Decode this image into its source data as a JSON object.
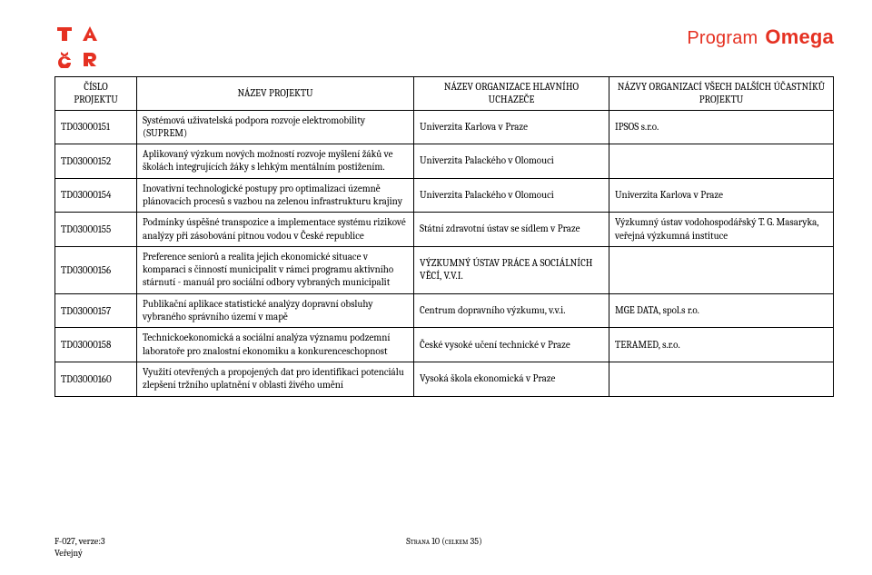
{
  "brand": {
    "accent_color": "#e53122",
    "program_label": "Program",
    "program_name": "Omega"
  },
  "table": {
    "headers": {
      "col1_line1": "ČÍSLO",
      "col1_line2": "PROJEKTU",
      "col2": "NÁZEV PROJEKTU",
      "col3_line1": "NÁZEV ORGANIZACE HLAVNÍHO",
      "col3_line2": "UCHAZEČE",
      "col4_line1": "NÁZVY ORGANIZACÍ VŠECH DALŠÍCH ÚČASTNÍKŮ",
      "col4_line2": "PROJEKTU"
    },
    "rows": [
      {
        "id": "TD03000151",
        "name": "Systémová uživatelská podpora rozvoje elektromobility (SUPREM)",
        "org": "Univerzita Karlova v Praze",
        "participants": "IPSOS s.r.o."
      },
      {
        "id": "TD03000152",
        "name": "Aplikovaný výzkum nových možností rozvoje myšlení žáků ve školách integrujících žáky s lehkým mentálním postižením.",
        "org": "Univerzita Palackého v Olomouci",
        "participants": ""
      },
      {
        "id": "TD03000154",
        "name": "Inovativní technologické postupy pro optimalizaci územně plánovacích procesů s vazbou na zelenou infrastrukturu krajiny",
        "org": "Univerzita Palackého v Olomouci",
        "participants": "Univerzita Karlova v Praze"
      },
      {
        "id": "TD03000155",
        "name": "Podmínky úspěšné transpozice a implementace systému rizikové analýzy při zásobování pitnou vodou v České republice",
        "org": "Státní zdravotní ústav se sídlem v Praze",
        "participants": "Výzkumný ústav vodohospodářský T. G. Masaryka, veřejná výzkumná instituce"
      },
      {
        "id": "TD03000156",
        "name": "Preference seniorů a realita jejich ekonomické situace v komparaci s činností municipalit v rámci programu aktivního stárnutí - manuál pro sociální odbory vybraných municipalit",
        "org": "VÝZKUMNÝ ÚSTAV PRÁCE A SOCIÁLNÍCH VĚCÍ, V.V.I.",
        "participants": ""
      },
      {
        "id": "TD03000157",
        "name": "Publikační aplikace statistické analýzy dopravní obsluhy vybraného správního území v mapě",
        "org": "Centrum dopravního výzkumu, v.v.i.",
        "participants": "MGE DATA, spol.s r.o."
      },
      {
        "id": "TD03000158",
        "name": "Technickoekonomická a sociální analýza významu podzemní laboratoře pro znalostní ekonomiku a konkurenceschopnost",
        "org": "České vysoké učení technické v Praze",
        "participants": "TERAMED, s.r.o."
      },
      {
        "id": "TD03000160",
        "name": "Využití otevřených a propojených dat pro identifikaci potenciálu zlepšení tržního uplatnění v oblasti živého umění",
        "org": "Vysoká škola ekonomická v Praze",
        "participants": ""
      }
    ]
  },
  "footer": {
    "left_line1": "F-027, verze:3",
    "left_line2": "Veřejný",
    "center_prefix": "Strana ",
    "center_page": "10",
    "center_mid": " (celkem ",
    "center_total": "35",
    "center_suffix": ")"
  }
}
